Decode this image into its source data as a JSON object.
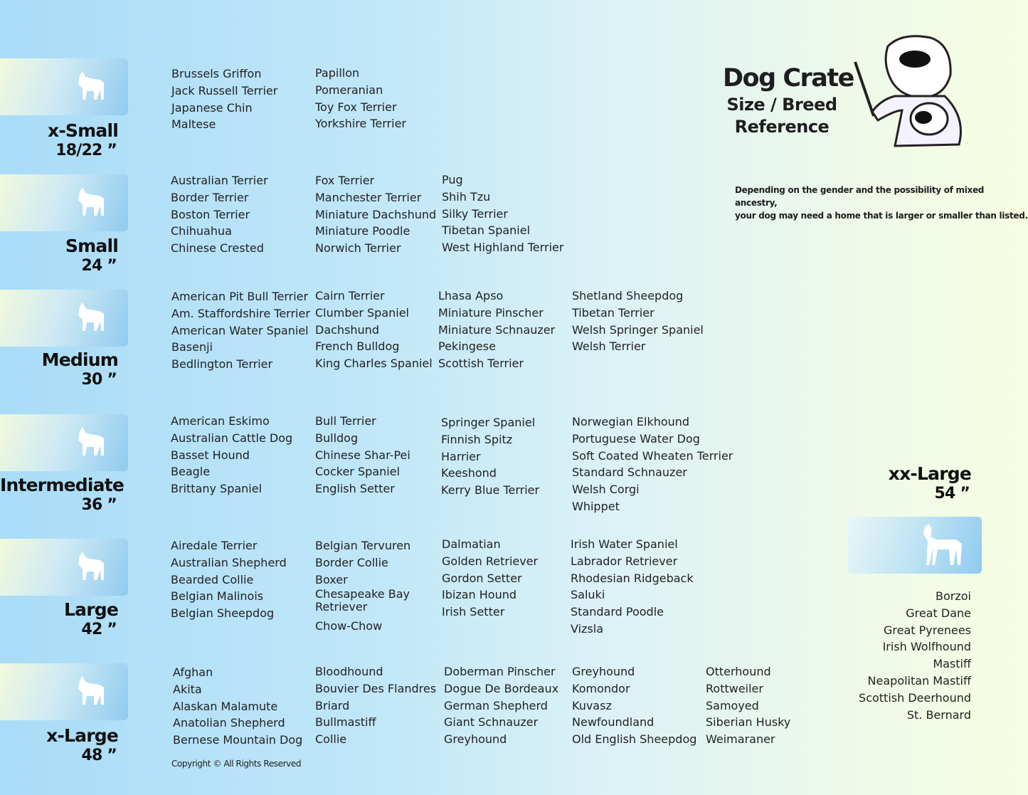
{
  "header": {
    "title": "Dog Crate",
    "subtitle_1": "Size / Breed",
    "subtitle_2": "Reference",
    "note_1": "Depending on the gender and the possibility of mixed ancestry,",
    "note_2": "your dog may need  a home that is larger or smaller than listed."
  },
  "sections": [
    {
      "label": "x-Small",
      "size": "18/22 ”",
      "icon": "papillon-silhouette-icon",
      "columns": [
        [
          "Brussels Griffon",
          "Jack Russell Terrier",
          "Japanese Chin",
          "Maltese"
        ],
        [
          "Papillon",
          "Pomeranian",
          "Toy Fox Terrier",
          "Yorkshire Terrier"
        ]
      ]
    },
    {
      "label": "Small",
      "size": "24 ”",
      "icon": "small-dog-silhouette-icon",
      "columns": [
        [
          "Australian Terrier",
          "Border Terrier",
          "Boston Terrier",
          "Chihuahua",
          "Chinese Crested"
        ],
        [
          "Fox Terrier",
          "Manchester Terrier",
          "Miniature Dachshund",
          "Miniature Poodle",
          "Norwich Terrier"
        ],
        [
          "Pug",
          "Shih Tzu",
          "Silky Terrier",
          "Tibetan Spaniel",
          "West Highland Terrier"
        ]
      ]
    },
    {
      "label": "Medium",
      "size": "30 ”",
      "icon": "terrier-silhouette-icon",
      "columns": [
        [
          "American Pit Bull Terrier",
          "Am. Staffordshire Terrier",
          "American Water Spaniel",
          "Basenji",
          "Bedlington Terrier"
        ],
        [
          "Cairn Terrier",
          "Clumber Spaniel",
          "Dachshund",
          "French Bulldog",
          "King Charles Spaniel"
        ],
        [
          "Lhasa Apso",
          "Miniature Pinscher",
          "Miniature Schnauzer",
          "Pekingese",
          "Scottish Terrier"
        ],
        [
          "Shetland Sheepdog",
          "Tibetan Terrier",
          "Welsh Springer Spaniel",
          "Welsh Terrier"
        ]
      ]
    },
    {
      "label": "Intermediate",
      "size": "36 ”",
      "icon": "spaniel-silhouette-icon",
      "columns": [
        [
          "American Eskimo",
          "Australian Cattle Dog",
          "Basset Hound",
          "Beagle",
          "Brittany Spaniel"
        ],
        [
          "Bull Terrier",
          "Bulldog",
          "Chinese Shar-Pei",
          "Cocker Spaniel",
          "English Setter"
        ],
        [
          "Springer Spaniel",
          "Finnish Spitz",
          "Harrier",
          "Keeshond",
          "Kerry Blue Terrier"
        ],
        [
          "Norwegian Elkhound",
          "Portuguese Water Dog",
          "Soft Coated Wheaten Terrier",
          "Standard Schnauzer",
          "Welsh Corgi",
          "Whippet"
        ]
      ]
    },
    {
      "label": "Large",
      "size": "42 ”",
      "icon": "shepherd-silhouette-icon",
      "columns": [
        [
          "Airedale Terrier",
          "Australian Shepherd",
          "Bearded Collie",
          "Belgian Malinois",
          "Belgian Sheepdog"
        ],
        [
          "Belgian Tervuren",
          "Border Collie",
          "Boxer",
          "Chesapeake Bay Retriever",
          "Chow-Chow"
        ],
        [
          "Dalmatian",
          "Golden Retriever",
          "Gordon Setter",
          "Ibizan Hound",
          "Irish Setter"
        ],
        [
          "Irish Water Spaniel",
          "Labrador Retriever",
          "Rhodesian Ridgeback",
          "Saluki",
          "Standard Poodle",
          "Vizsla"
        ]
      ]
    },
    {
      "label": "x-Large",
      "size": "48 ”",
      "icon": "husky-silhouette-icon",
      "columns": [
        [
          "Afghan",
          "Akita",
          "Alaskan Malamute",
          "Anatolian Shepherd",
          "Bernese Mountain Dog"
        ],
        [
          "Bloodhound",
          "Bouvier Des Flandres",
          "Briard",
          "Bullmastiff",
          "Collie"
        ],
        [
          "Doberman Pinscher",
          "Dogue De Bordeaux",
          "German Shepherd",
          "Giant Schnauzer",
          "Greyhound"
        ],
        [
          "Greyhound",
          "Komondor",
          "Kuvasz",
          "Newfoundland",
          "Old English Sheepdog"
        ],
        [
          "Otterhound",
          "Rottweiler",
          "Samoyed",
          "Siberian Husky",
          "Weimaraner"
        ]
      ]
    }
  ],
  "xx_large": {
    "label": "xx-Large",
    "size": "54 ”",
    "icon": "great-dane-silhouette-icon",
    "breeds": [
      "Borzoi",
      "Great Dane",
      "Great Pyrenees",
      "Irish Wolfhound",
      "Mastiff",
      "Neapolitan Mastiff",
      "Scottish Deerhound",
      "St. Bernard"
    ]
  },
  "footer": {
    "copyright": "Copyright © All Rights Reserved"
  }
}
